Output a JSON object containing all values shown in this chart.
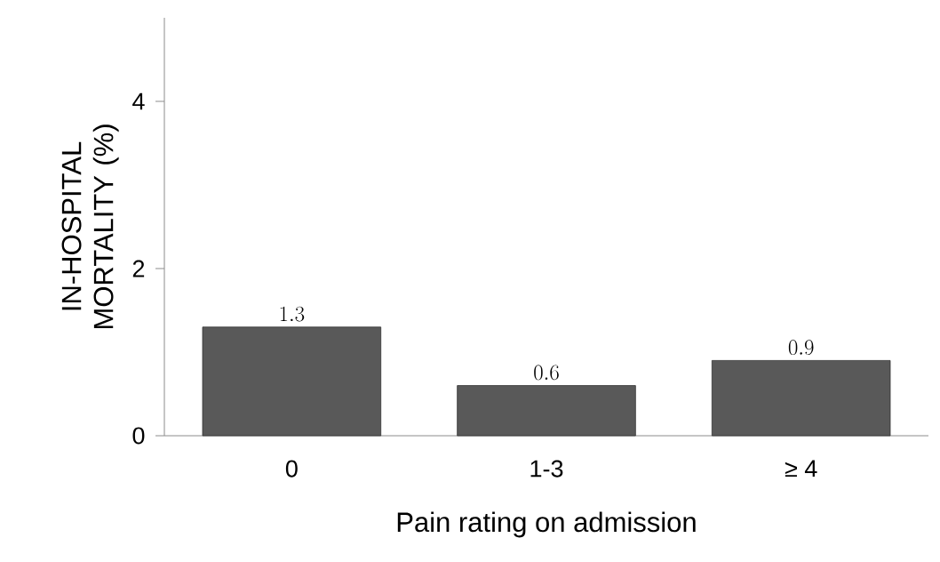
{
  "chart_data": {
    "type": "bar",
    "xlabel": "Pain rating on admission",
    "ylabel": "IN-HOSPITAL MORTALITY (%)",
    "categories": [
      "0",
      "1-3",
      "≥ 4"
    ],
    "values": [
      1.3,
      0.6,
      0.9
    ],
    "color": "#595959",
    "ylim": [
      0,
      5
    ],
    "yticks": [
      0,
      2,
      4
    ],
    "data_labels": true
  }
}
